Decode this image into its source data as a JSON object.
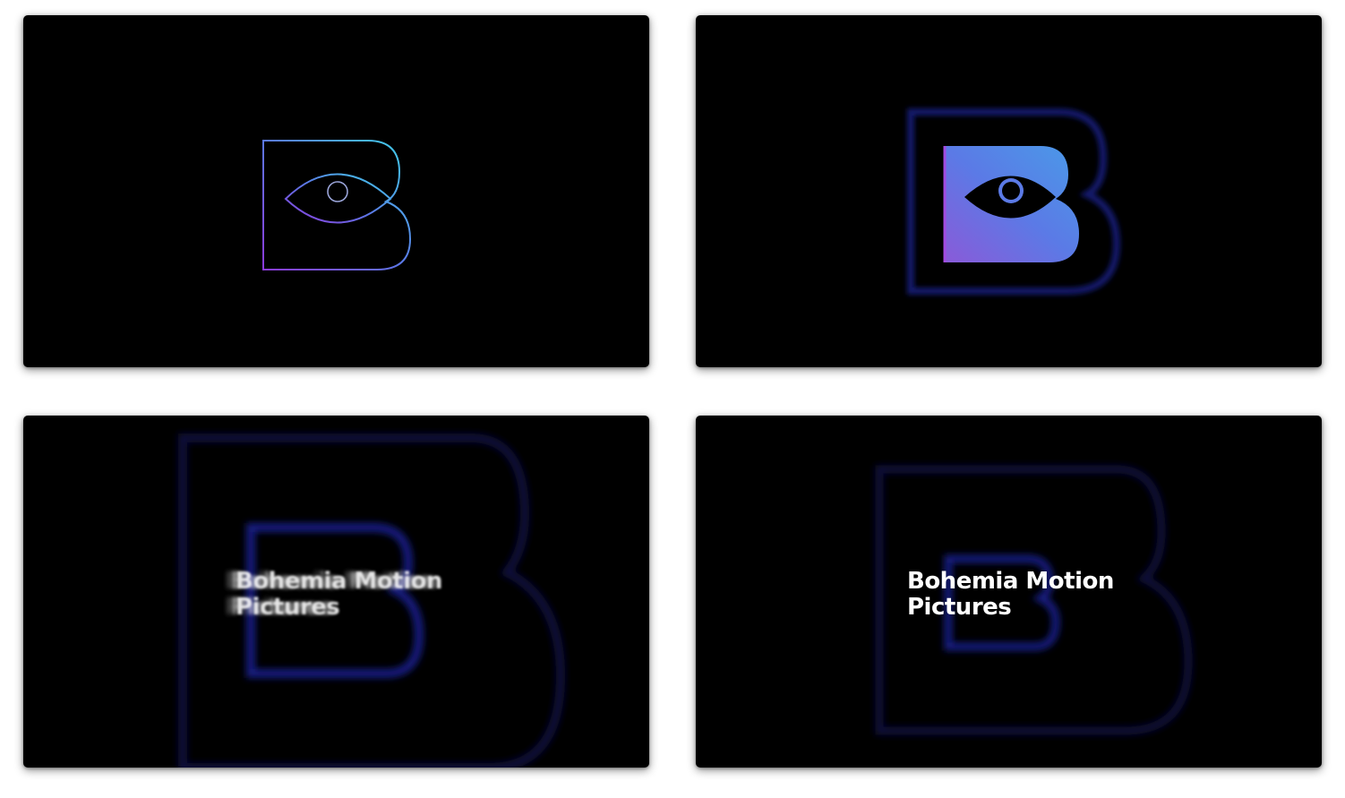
{
  "frames": [
    {
      "id": "frame-1",
      "stage": "outline-logo",
      "icon": "eye-icon"
    },
    {
      "id": "frame-2",
      "stage": "filled-logo",
      "icon": "eye-icon"
    },
    {
      "id": "frame-3",
      "stage": "text-reveal-motion-blur",
      "wordmark": {
        "line1": "Bohemia Motion",
        "line2": "Pictures"
      }
    },
    {
      "id": "frame-4",
      "stage": "text-final",
      "wordmark": {
        "line1": "Bohemia Motion",
        "line2": "Pictures"
      }
    }
  ],
  "colors": {
    "background": "#000000",
    "page": "#ffffff",
    "gradient_start": "#8b3ad9",
    "gradient_mid": "#5b78e6",
    "gradient_end": "#3fb0e8",
    "glow_blue": "#1a1f8c",
    "text": "#ffffff"
  }
}
